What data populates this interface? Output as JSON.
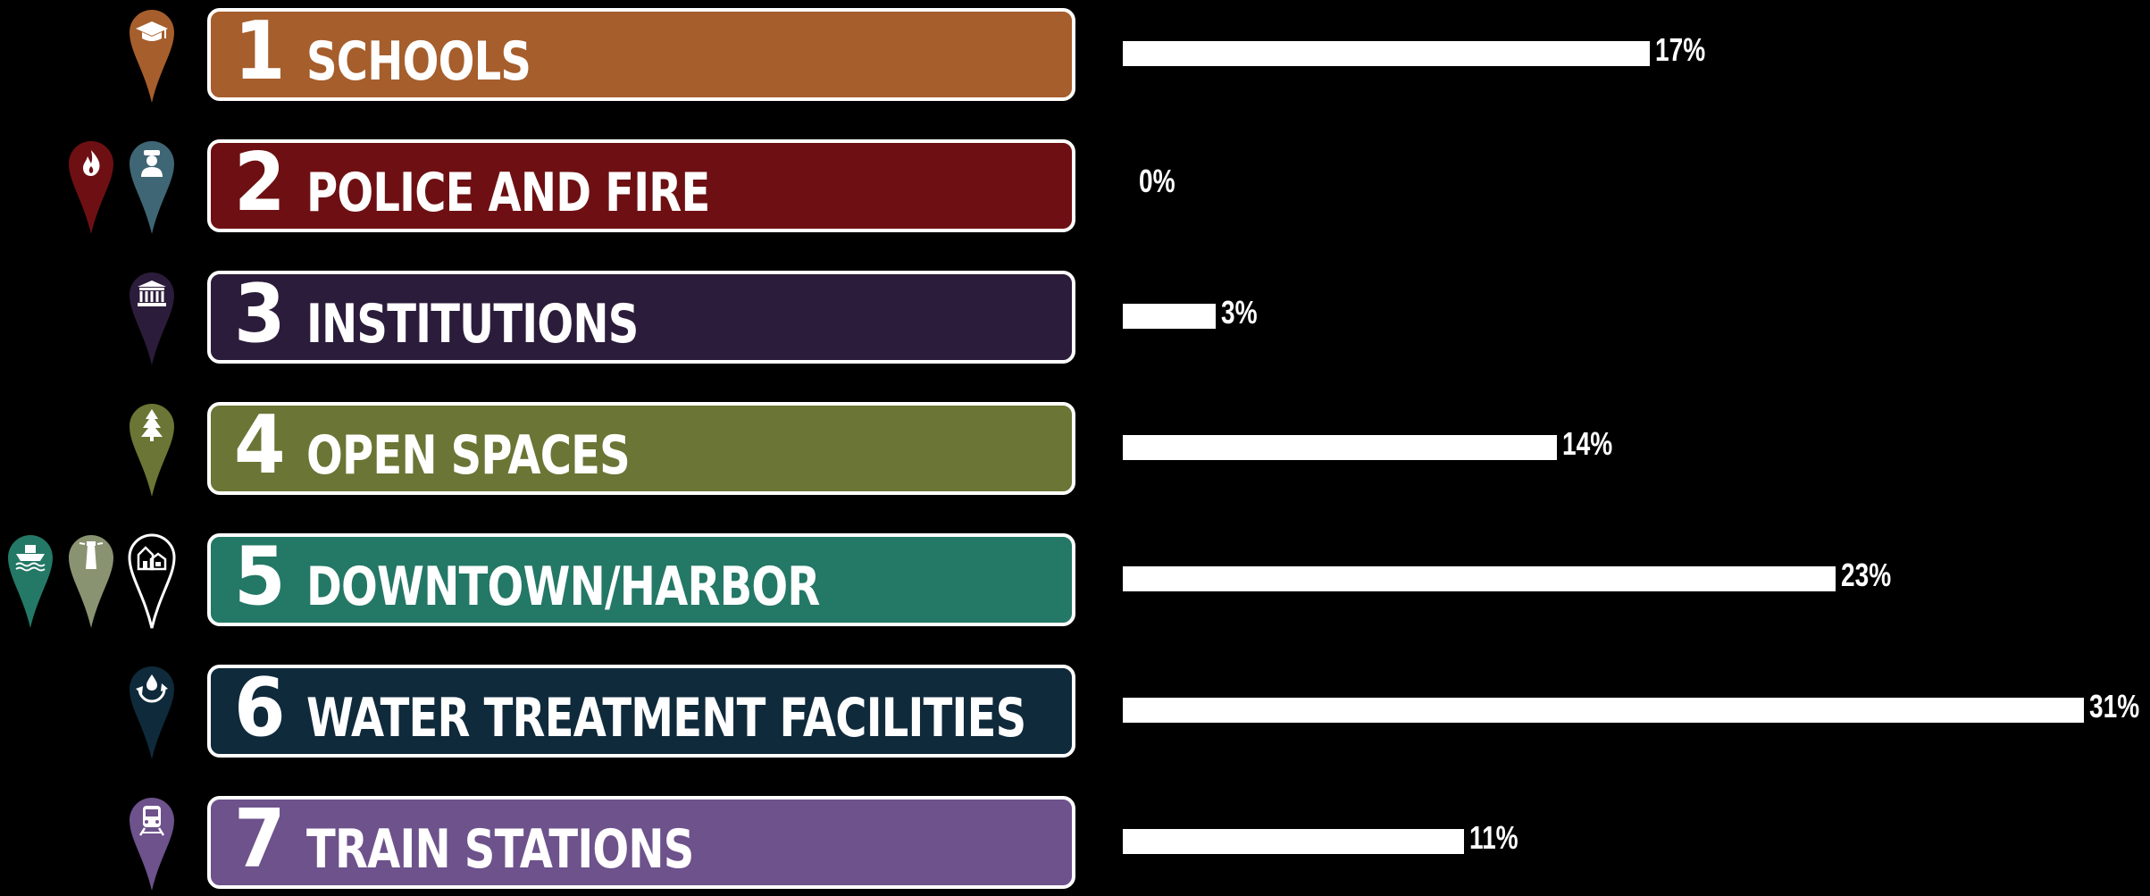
{
  "chart_data": {
    "type": "bar",
    "orientation": "horizontal",
    "max_value": 31,
    "categories": [
      {
        "number": "1",
        "label": "SCHOOLS",
        "value": 17,
        "value_label": "17%",
        "color": "#a65e2c",
        "icons": [
          {
            "name": "graduation-cap-icon",
            "color": "#a65e2c",
            "outline": false
          }
        ]
      },
      {
        "number": "2",
        "label": "POLICE AND FIRE",
        "value": 0,
        "value_label": "0%",
        "color": "#6e1013",
        "icons": [
          {
            "name": "fire-icon",
            "color": "#6e1013",
            "outline": false
          },
          {
            "name": "police-officer-icon",
            "color": "#3f6674",
            "outline": false
          }
        ]
      },
      {
        "number": "3",
        "label": "INSTITUTIONS",
        "value": 3,
        "value_label": "3%",
        "color": "#2c1c3b",
        "icons": [
          {
            "name": "bank-building-icon",
            "color": "#2c1c3b",
            "outline": false
          }
        ]
      },
      {
        "number": "4",
        "label": "OPEN SPACES",
        "value": 14,
        "value_label": "14%",
        "color": "#6b7535",
        "icons": [
          {
            "name": "pine-tree-icon",
            "color": "#6b7535",
            "outline": false
          }
        ]
      },
      {
        "number": "5",
        "label": "DOWNTOWN/HARBOR",
        "value": 23,
        "value_label": "23%",
        "color": "#247866",
        "icons": [
          {
            "name": "boat-icon",
            "color": "#247866",
            "outline": false
          },
          {
            "name": "lighthouse-icon",
            "color": "#8a9371",
            "outline": false
          },
          {
            "name": "houses-icon",
            "color": "#000000",
            "outline": true
          }
        ]
      },
      {
        "number": "6",
        "label": "WATER TREATMENT FACILITIES",
        "value": 31,
        "value_label": "31%",
        "color": "#0f2a3b",
        "icons": [
          {
            "name": "water-recycle-icon",
            "color": "#0f2a3b",
            "outline": false
          }
        ]
      },
      {
        "number": "7",
        "label": "TRAIN STATIONS",
        "value": 11,
        "value_label": "11%",
        "color": "#6d528c",
        "icons": [
          {
            "name": "train-icon",
            "color": "#6d528c",
            "outline": false
          }
        ]
      }
    ]
  }
}
